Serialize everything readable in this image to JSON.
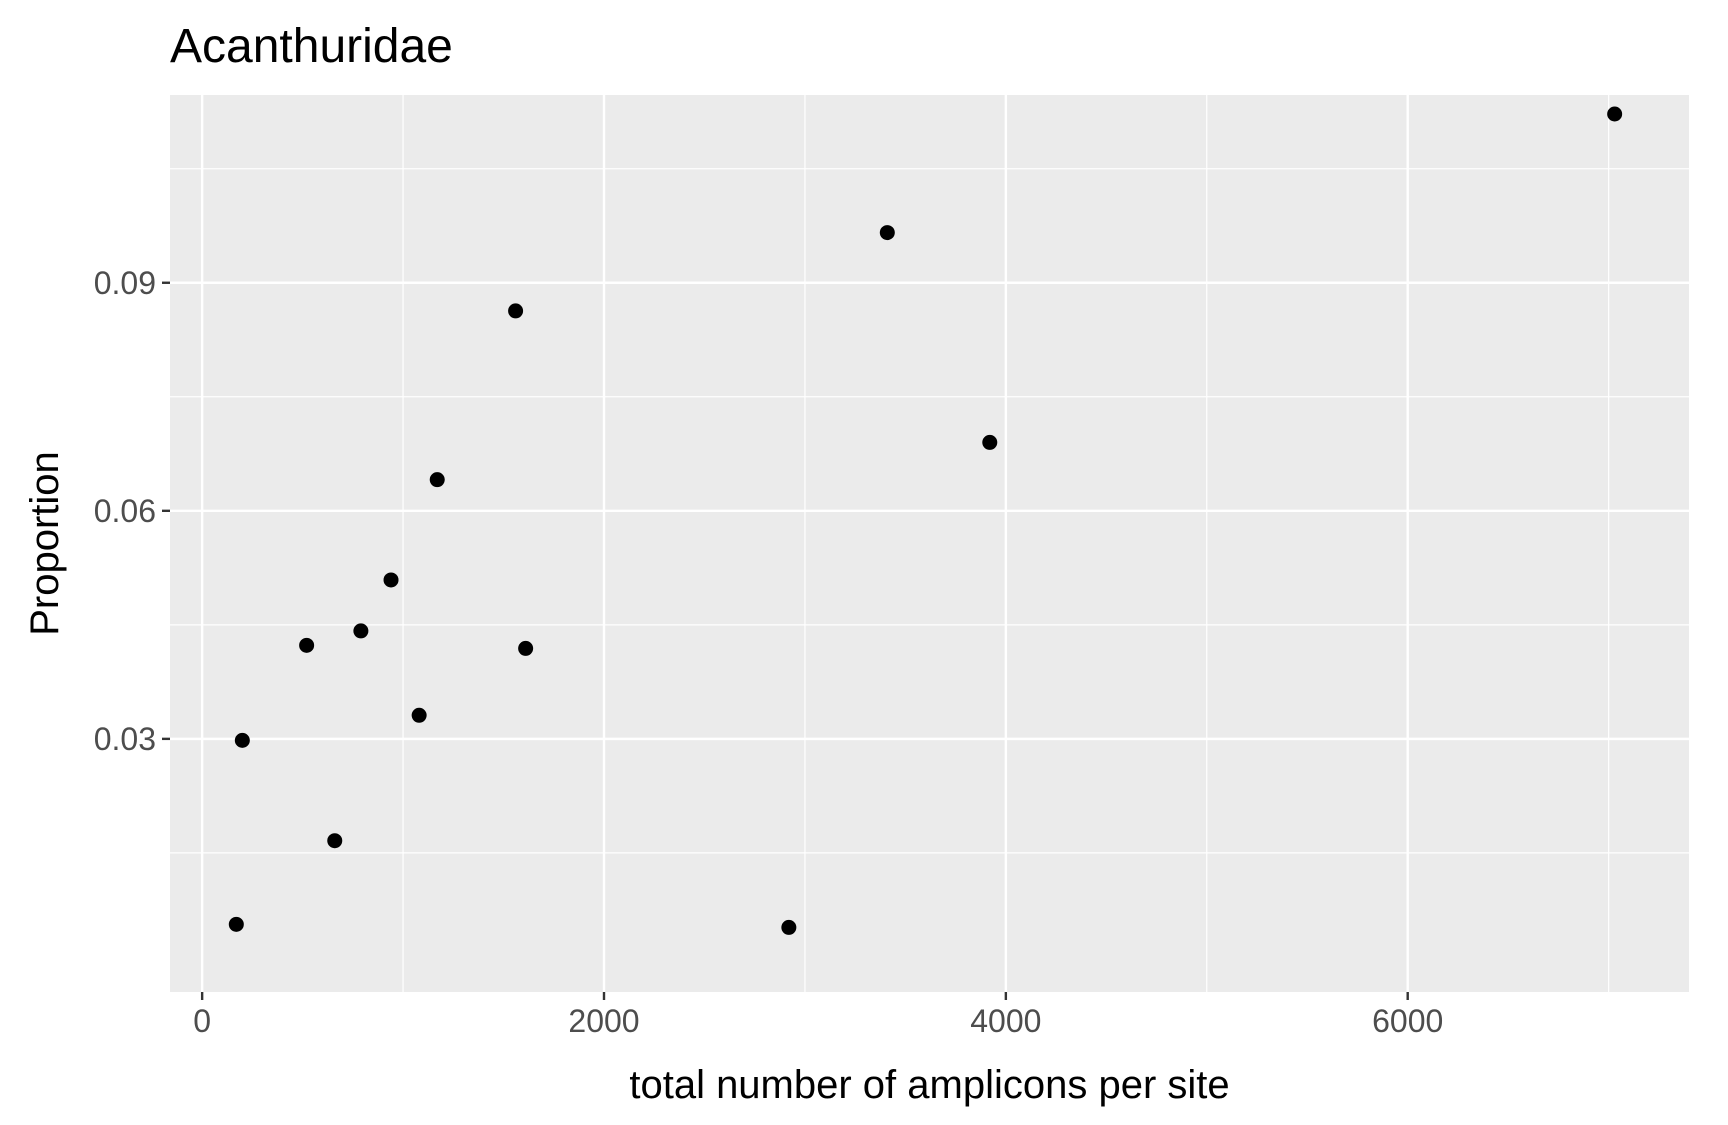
{
  "chart_data": {
    "type": "scatter",
    "title": "Acanthuridae",
    "xlabel": "total number of amplicons per site",
    "ylabel": "Proportion",
    "xlim": [
      -160,
      7400
    ],
    "ylim": [
      -0.0033,
      0.1147
    ],
    "x_ticks": [
      0,
      2000,
      4000,
      6000
    ],
    "x_tick_labels": [
      "0",
      "2000",
      "4000",
      "6000"
    ],
    "y_ticks": [
      0.03,
      0.06,
      0.09
    ],
    "y_tick_labels": [
      "0.03",
      "0.06",
      "0.09"
    ],
    "grid": true,
    "legend": "none",
    "colors": {
      "panel_background": "#ebebeb",
      "grid_line": "#ffffff",
      "point": "#000000",
      "tick": "#333333"
    },
    "points": [
      {
        "x": 7030,
        "y": 0.1122
      },
      {
        "x": 3410,
        "y": 0.0966
      },
      {
        "x": 1560,
        "y": 0.0863
      },
      {
        "x": 3920,
        "y": 0.069
      },
      {
        "x": 1170,
        "y": 0.0641
      },
      {
        "x": 940,
        "y": 0.0509
      },
      {
        "x": 790,
        "y": 0.0442
      },
      {
        "x": 520,
        "y": 0.0423
      },
      {
        "x": 1610,
        "y": 0.0419
      },
      {
        "x": 1080,
        "y": 0.0331
      },
      {
        "x": 200,
        "y": 0.0298
      },
      {
        "x": 660,
        "y": 0.0166
      },
      {
        "x": 170,
        "y": 0.0056
      },
      {
        "x": 2920,
        "y": 0.0052
      }
    ]
  }
}
